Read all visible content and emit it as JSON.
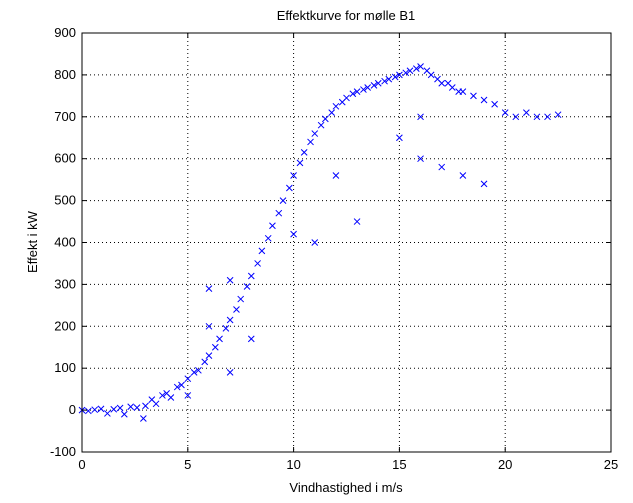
{
  "chart_data": {
    "type": "scatter",
    "title": "Effektkurve for mølle B1",
    "xlabel": "Vindhastighed i m/s",
    "ylabel": "Effekt i kW",
    "xlim": [
      0,
      25
    ],
    "ylim": [
      -100,
      900
    ],
    "xticks": [
      0,
      5,
      10,
      15,
      20,
      25
    ],
    "yticks": [
      -100,
      0,
      100,
      200,
      300,
      400,
      500,
      600,
      700,
      800,
      900
    ],
    "grid": "dotted",
    "legend": "none",
    "marker": "x",
    "color": "#0000ff",
    "series": [
      {
        "points": [
          [
            0.0,
            0
          ],
          [
            0.3,
            -2
          ],
          [
            0.6,
            1
          ],
          [
            0.9,
            3
          ],
          [
            1.2,
            -8
          ],
          [
            1.5,
            2
          ],
          [
            1.8,
            5
          ],
          [
            2.0,
            -10
          ],
          [
            2.3,
            8
          ],
          [
            2.6,
            6
          ],
          [
            2.9,
            -20
          ],
          [
            3.0,
            10
          ],
          [
            3.3,
            25
          ],
          [
            3.5,
            15
          ],
          [
            3.8,
            35
          ],
          [
            4.0,
            40
          ],
          [
            4.2,
            30
          ],
          [
            4.5,
            55
          ],
          [
            4.7,
            60
          ],
          [
            5.0,
            75
          ],
          [
            5.0,
            35
          ],
          [
            5.3,
            90
          ],
          [
            5.5,
            95
          ],
          [
            5.8,
            115
          ],
          [
            6.0,
            130
          ],
          [
            6.0,
            200
          ],
          [
            6.0,
            290
          ],
          [
            6.3,
            150
          ],
          [
            6.5,
            170
          ],
          [
            6.8,
            195
          ],
          [
            7.0,
            215
          ],
          [
            7.0,
            310
          ],
          [
            7.0,
            90
          ],
          [
            7.3,
            240
          ],
          [
            7.5,
            265
          ],
          [
            7.8,
            295
          ],
          [
            8.0,
            320
          ],
          [
            8.0,
            170
          ],
          [
            8.3,
            350
          ],
          [
            8.5,
            380
          ],
          [
            8.8,
            410
          ],
          [
            9.0,
            440
          ],
          [
            9.3,
            470
          ],
          [
            9.5,
            500
          ],
          [
            9.8,
            530
          ],
          [
            10.0,
            560
          ],
          [
            10.0,
            420
          ],
          [
            10.3,
            590
          ],
          [
            10.5,
            615
          ],
          [
            10.8,
            640
          ],
          [
            11.0,
            660
          ],
          [
            11.0,
            400
          ],
          [
            11.3,
            680
          ],
          [
            11.5,
            695
          ],
          [
            11.8,
            710
          ],
          [
            12.0,
            725
          ],
          [
            12.0,
            560
          ],
          [
            12.3,
            735
          ],
          [
            12.5,
            745
          ],
          [
            12.8,
            755
          ],
          [
            13.0,
            760
          ],
          [
            13.0,
            450
          ],
          [
            13.3,
            765
          ],
          [
            13.5,
            770
          ],
          [
            13.8,
            775
          ],
          [
            14.0,
            780
          ],
          [
            14.3,
            785
          ],
          [
            14.5,
            790
          ],
          [
            14.8,
            795
          ],
          [
            15.0,
            800
          ],
          [
            15.0,
            650
          ],
          [
            15.3,
            805
          ],
          [
            15.5,
            810
          ],
          [
            15.8,
            815
          ],
          [
            16.0,
            820
          ],
          [
            16.0,
            600
          ],
          [
            16.0,
            700
          ],
          [
            16.3,
            810
          ],
          [
            16.5,
            800
          ],
          [
            16.8,
            790
          ],
          [
            17.0,
            780
          ],
          [
            17.0,
            580
          ],
          [
            17.3,
            780
          ],
          [
            17.5,
            770
          ],
          [
            17.8,
            760
          ],
          [
            18.0,
            760
          ],
          [
            18.0,
            560
          ],
          [
            18.5,
            750
          ],
          [
            19.0,
            740
          ],
          [
            19.0,
            540
          ],
          [
            19.5,
            730
          ],
          [
            20.0,
            710
          ],
          [
            20.5,
            700
          ],
          [
            21.0,
            710
          ],
          [
            21.5,
            700
          ],
          [
            22.0,
            700
          ],
          [
            22.5,
            705
          ]
        ]
      }
    ]
  }
}
